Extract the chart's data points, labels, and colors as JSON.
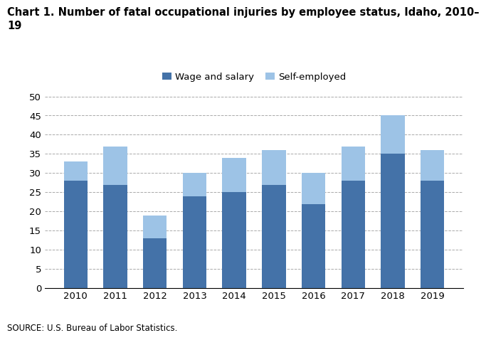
{
  "title_line1": "Chart 1. Number of fatal occupational injuries by employee status, Idaho, 2010–",
  "title_line2": "19",
  "years": [
    "2010",
    "2011",
    "2012",
    "2013",
    "2014",
    "2015",
    "2016",
    "2017",
    "2018",
    "2019"
  ],
  "wage_and_salary": [
    28,
    27,
    13,
    24,
    25,
    27,
    22,
    28,
    35,
    28
  ],
  "self_employed": [
    5,
    10,
    6,
    6,
    9,
    9,
    8,
    9,
    10,
    8
  ],
  "wage_color": "#4472a8",
  "self_color": "#9dc3e6",
  "ylim": [
    0,
    50
  ],
  "yticks": [
    0,
    5,
    10,
    15,
    20,
    25,
    30,
    35,
    40,
    45,
    50
  ],
  "legend_labels": [
    "Wage and salary",
    "Self-employed"
  ],
  "source": "SOURCE: U.S. Bureau of Labor Statistics.",
  "title_fontsize": 10.5,
  "tick_fontsize": 9.5,
  "source_fontsize": 8.5,
  "legend_fontsize": 9.5,
  "background_color": "#ffffff",
  "grid_color": "#aaaaaa"
}
